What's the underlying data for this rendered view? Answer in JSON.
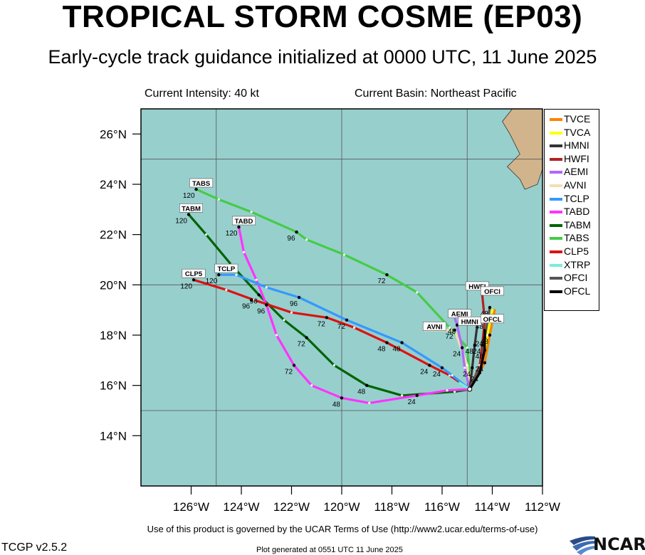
{
  "header": {
    "title": "TROPICAL STORM COSME (EP03)",
    "subtitle": "Early-cycle track guidance initialized at 0000 UTC, 11 June 2025",
    "intensity": "Current Intensity: 40 kt",
    "basin": "Current Basin: Northeast Pacific"
  },
  "footer": {
    "terms": "Use of this product is governed by the UCAR Terms of Use (http://www2.ucar.edu/terms-of-use)",
    "version": "TCGP v2.5.2",
    "generated": "Plot generated at 0551 UTC   11 June 2025",
    "logo": "NCAR"
  },
  "colors": {
    "ocean": "#97cfcd",
    "land": "#d2b48c",
    "grid": "#555555"
  },
  "axes": {
    "lon_range": [
      -128,
      -112
    ],
    "lat_range": [
      12,
      27
    ],
    "lon_ticks": [
      "126°W",
      "124°W",
      "122°W",
      "120°W",
      "118°W",
      "116°W",
      "114°W",
      "112°W"
    ],
    "lat_ticks": [
      "14°N",
      "16°N",
      "18°N",
      "20°N",
      "22°N",
      "24°N",
      "26°N"
    ]
  },
  "legend": [
    {
      "name": "TVCE",
      "color": "#ff8000"
    },
    {
      "name": "TVCA",
      "color": "#ffff00"
    },
    {
      "name": "HMNI",
      "color": "#333333"
    },
    {
      "name": "HWFI",
      "color": "#b22222"
    },
    {
      "name": "AEMI",
      "color": "#b266ff"
    },
    {
      "name": "AVNI",
      "color": "#f5deb3"
    },
    {
      "name": "TCLP",
      "color": "#3399ff"
    },
    {
      "name": "TABD",
      "color": "#ff33ff"
    },
    {
      "name": "TABM",
      "color": "#006400"
    },
    {
      "name": "TABS",
      "color": "#44cc44"
    },
    {
      "name": "CLP5",
      "color": "#dd1111"
    },
    {
      "name": "XTRP",
      "color": "#77eedd"
    },
    {
      "name": "OFCI",
      "color": "#555555"
    },
    {
      "name": "OFCL",
      "color": "#000000"
    }
  ],
  "chart_data": {
    "type": "map-track",
    "start": [
      -114.9,
      15.85
    ],
    "tracks": [
      {
        "name": "TABS",
        "color": "#44cc44",
        "label": "TABS",
        "points": [
          [
            -114.9,
            15.85
          ],
          [
            -114.9,
            16.5
          ],
          [
            -115.0,
            17.5
          ],
          [
            -115.7,
            18.3
          ],
          [
            -117.0,
            19.7
          ],
          [
            -118.2,
            20.4
          ],
          [
            -119.9,
            21.2
          ],
          [
            -121.4,
            21.8
          ],
          [
            -121.8,
            22.1
          ],
          [
            -123.6,
            22.9
          ],
          [
            -124.9,
            23.4
          ],
          [
            -125.8,
            23.8
          ]
        ],
        "ticks": [
          {
            "lon": -118.2,
            "lat": 20.4,
            "label": "72"
          },
          {
            "lon": -121.8,
            "lat": 22.1,
            "label": "96"
          },
          {
            "lon": -125.8,
            "lat": 23.8,
            "label": "120"
          }
        ]
      },
      {
        "name": "TABM",
        "color": "#006400",
        "label": "TABM",
        "points": [
          [
            -114.9,
            15.85
          ],
          [
            -115.5,
            15.75
          ],
          [
            -117.6,
            15.6
          ],
          [
            -119.0,
            16.0
          ],
          [
            -120.3,
            16.8
          ],
          [
            -121.4,
            17.9
          ],
          [
            -122.3,
            18.6
          ],
          [
            -123.3,
            19.6
          ],
          [
            -124.4,
            20.8
          ],
          [
            -125.4,
            22.0
          ],
          [
            -126.1,
            22.8
          ]
        ],
        "ticks": [
          {
            "lon": -119.0,
            "lat": 16.0,
            "label": "48"
          },
          {
            "lon": -121.4,
            "lat": 17.9,
            "label": "72"
          },
          {
            "lon": -123.3,
            "lat": 19.6,
            "label": "96"
          },
          {
            "lon": -126.1,
            "lat": 22.8,
            "label": "120"
          }
        ]
      },
      {
        "name": "TABD",
        "color": "#ff33ff",
        "label": "TABD",
        "points": [
          [
            -114.9,
            15.85
          ],
          [
            -115.8,
            15.8
          ],
          [
            -117.0,
            15.6
          ],
          [
            -118.9,
            15.3
          ],
          [
            -120.0,
            15.5
          ],
          [
            -121.2,
            16.0
          ],
          [
            -121.9,
            16.8
          ],
          [
            -122.6,
            18.0
          ],
          [
            -123.0,
            19.2
          ],
          [
            -123.4,
            20.2
          ],
          [
            -123.9,
            21.3
          ],
          [
            -124.1,
            22.3
          ]
        ],
        "ticks": [
          {
            "lon": -117.0,
            "lat": 15.6,
            "label": "24"
          },
          {
            "lon": -120.0,
            "lat": 15.5,
            "label": "48"
          },
          {
            "lon": -121.9,
            "lat": 16.8,
            "label": "72"
          },
          {
            "lon": -123.0,
            "lat": 19.2,
            "label": "96"
          },
          {
            "lon": -124.1,
            "lat": 22.3,
            "label": "120"
          }
        ]
      },
      {
        "name": "CLP5",
        "color": "#dd1111",
        "label": "CLP5",
        "points": [
          [
            -114.9,
            15.85
          ],
          [
            -115.7,
            16.4
          ],
          [
            -116.5,
            16.8
          ],
          [
            -118.2,
            17.7
          ],
          [
            -119.5,
            18.3
          ],
          [
            -120.6,
            18.7
          ],
          [
            -122.0,
            18.9
          ],
          [
            -123.5,
            19.4
          ],
          [
            -124.6,
            19.8
          ],
          [
            -125.9,
            20.2
          ]
        ],
        "ticks": [
          {
            "lon": -116.5,
            "lat": 16.8,
            "label": "24"
          },
          {
            "lon": -118.2,
            "lat": 17.7,
            "label": "48"
          },
          {
            "lon": -120.6,
            "lat": 18.7,
            "label": "72"
          },
          {
            "lon": -123.6,
            "lat": 19.4,
            "label": "96"
          },
          {
            "lon": -125.9,
            "lat": 20.2,
            "label": "120"
          }
        ]
      },
      {
        "name": "TCLP",
        "color": "#3399ff",
        "label": "TCLP",
        "points": [
          [
            -114.9,
            15.85
          ],
          [
            -115.6,
            16.4
          ],
          [
            -116.0,
            16.7
          ],
          [
            -117.6,
            17.7
          ],
          [
            -119.8,
            18.6
          ],
          [
            -121.7,
            19.5
          ],
          [
            -123.0,
            19.9
          ],
          [
            -124.2,
            20.4
          ],
          [
            -124.9,
            20.4
          ]
        ],
        "ticks": [
          {
            "lon": -116.0,
            "lat": 16.7,
            "label": "24"
          },
          {
            "lon": -117.6,
            "lat": 17.7,
            "label": "48"
          },
          {
            "lon": -119.8,
            "lat": 18.6,
            "label": "72"
          },
          {
            "lon": -121.7,
            "lat": 19.5,
            "label": "96"
          },
          {
            "lon": -124.9,
            "lat": 20.4,
            "label": "120"
          }
        ]
      },
      {
        "name": "AVNI",
        "color": "#f5deb3",
        "label": "AVNI",
        "points": [
          [
            -114.9,
            15.85
          ],
          [
            -115.0,
            16.8
          ],
          [
            -115.5,
            18.2
          ],
          [
            -116.7,
            18.2
          ]
        ],
        "ticks": [
          {
            "lon": -115.5,
            "lat": 18.2,
            "label": "72"
          }
        ]
      },
      {
        "name": "AEMI",
        "color": "#b266ff",
        "label": "AEMI",
        "points": [
          [
            -114.9,
            15.85
          ],
          [
            -115.1,
            16.7
          ],
          [
            -115.2,
            17.5
          ],
          [
            -115.4,
            18.4
          ],
          [
            -115.5,
            18.7
          ]
        ],
        "ticks": [
          {
            "lon": -115.2,
            "lat": 17.5,
            "label": "24"
          },
          {
            "lon": -115.4,
            "lat": 18.4,
            "label": "48"
          }
        ]
      },
      {
        "name": "HMNI",
        "color": "#333333",
        "label": "HMNI",
        "points": [
          [
            -114.9,
            15.85
          ],
          [
            -114.8,
            16.7
          ],
          [
            -114.7,
            17.6
          ],
          [
            -114.6,
            18.4
          ]
        ],
        "ticks": [
          {
            "lon": -114.8,
            "lat": 16.7,
            "label": "24"
          },
          {
            "lon": -114.7,
            "lat": 17.6,
            "label": "48"
          }
        ]
      },
      {
        "name": "HWFI",
        "color": "#b22222",
        "label": "HWFI",
        "points": [
          [
            -114.9,
            15.85
          ],
          [
            -114.5,
            16.8
          ],
          [
            -114.4,
            17.6
          ],
          [
            -114.3,
            18.6
          ],
          [
            -114.4,
            19.6
          ]
        ],
        "ticks": [
          {
            "lon": -114.4,
            "lat": 17.6,
            "label": "24"
          },
          {
            "lon": -114.3,
            "lat": 18.6,
            "label": "48"
          }
        ]
      },
      {
        "name": "TVCE",
        "color": "#ff8000",
        "label": "TVCE",
        "points": [
          [
            -114.9,
            15.85
          ],
          [
            -114.3,
            16.9
          ],
          [
            -114.1,
            18.0
          ],
          [
            -113.9,
            19.0
          ]
        ],
        "ticks": [
          {
            "lon": -114.3,
            "lat": 16.9,
            "label": "24"
          },
          {
            "lon": -114.1,
            "lat": 18.0,
            "label": "48"
          }
        ]
      },
      {
        "name": "TVCA",
        "color": "#ffff00",
        "label": "",
        "points": [
          [
            -114.9,
            15.85
          ],
          [
            -114.4,
            16.9
          ],
          [
            -114.2,
            18.0
          ],
          [
            -114.0,
            19.0
          ]
        ],
        "ticks": []
      },
      {
        "name": "OFCI",
        "color": "#555555",
        "label": "OFCI",
        "points": [
          [
            -114.9,
            15.85
          ],
          [
            -114.4,
            16.9
          ],
          [
            -114.3,
            17.9
          ],
          [
            -114.1,
            19.1
          ]
        ],
        "ticks": [
          {
            "lon": -114.3,
            "lat": 17.9,
            "label": "24"
          },
          {
            "lon": -114.1,
            "lat": 19.1,
            "label": "48"
          }
        ]
      },
      {
        "name": "OFCL",
        "color": "#000000",
        "label": "OFCL",
        "points": [
          [
            -114.9,
            15.85
          ],
          [
            -114.5,
            16.5
          ],
          [
            -114.3,
            17.4
          ],
          [
            -114.3,
            18.2
          ]
        ],
        "ticks": [
          {
            "lon": -114.5,
            "lat": 16.5,
            "label": "24"
          },
          {
            "lon": -114.3,
            "lat": 17.4,
            "label": "48"
          }
        ]
      },
      {
        "name": "XTRP",
        "color": "#77eedd",
        "label": "",
        "points": [
          [
            -114.9,
            15.85
          ],
          [
            -115.3,
            16.1
          ]
        ],
        "ticks": []
      }
    ],
    "tag_positions": {
      "TABS": [
        -125.6,
        24.0
      ],
      "TABM": [
        -126.0,
        23.0
      ],
      "TABD": [
        -123.9,
        22.5
      ],
      "CLP5": [
        -125.9,
        20.4
      ],
      "TCLP": [
        -124.6,
        20.6
      ],
      "AVNI": [
        -116.3,
        18.3
      ],
      "AEMI": [
        -115.3,
        18.8
      ],
      "HMNI": [
        -114.9,
        18.5
      ],
      "HWFI": [
        -114.6,
        19.9
      ],
      "OFCI": [
        -114.0,
        19.7
      ],
      "TVCA": [
        -113.8,
        19.4
      ],
      "OFCL": [
        -114.0,
        18.6
      ]
    }
  }
}
